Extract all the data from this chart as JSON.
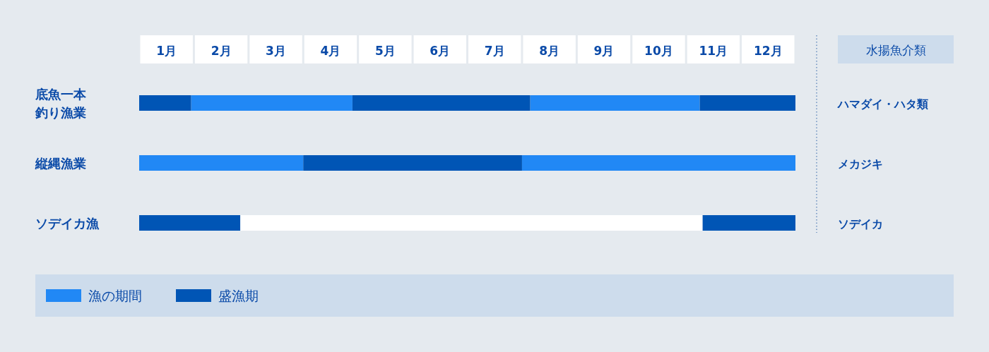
{
  "chart_data": {
    "type": "bar",
    "orientation": "horizontal",
    "legend": "bottom",
    "categories": [
      "底魚一本釣り漁業",
      "縦縄漁業",
      "ソデイカ漁"
    ],
    "xlim": [
      0,
      12
    ],
    "xticks": [
      {
        "value": 0.5,
        "label": "1月"
      },
      {
        "value": 1.5,
        "label": "2月"
      },
      {
        "value": 2.5,
        "label": "3月"
      },
      {
        "value": 3.5,
        "label": "4月"
      },
      {
        "value": 4.5,
        "label": "5月"
      },
      {
        "value": 5.5,
        "label": "6月"
      },
      {
        "value": 6.5,
        "label": "7月"
      },
      {
        "value": 7.5,
        "label": "8月"
      },
      {
        "value": 8.5,
        "label": "9月"
      },
      {
        "value": 9.5,
        "label": "10月"
      },
      {
        "value": 10.5,
        "label": "11月"
      },
      {
        "value": 11.5,
        "label": "12月"
      }
    ],
    "series": [
      {
        "name": "漁の期間",
        "color": "#2188f5",
        "base": [
          0.95,
          0,
          null
        ],
        "values": [
          2.95,
          3,
          null
        ]
      },
      {
        "color": "#2188f5",
        "base": [
          7.15,
          7,
          null
        ],
        "values": [
          3.1,
          5,
          null
        ]
      },
      {
        "name": "盛漁期",
        "color": "#0055b5",
        "base": [
          0,
          3,
          0
        ],
        "values": [
          0.95,
          4,
          1.85
        ]
      },
      {
        "color": "#0055b5",
        "base": [
          3.9,
          null,
          10.3
        ],
        "values": [
          3.25,
          null,
          1.7
        ]
      },
      {
        "color": "#0055b5",
        "base": [
          10.25,
          null,
          null
        ],
        "values": [
          1.75,
          null,
          null
        ]
      },
      {
        "color": "#ffffff",
        "base": [
          null,
          null,
          1.85
        ],
        "values": [
          null,
          null,
          8.45
        ]
      }
    ],
    "annotations": [
      "水揚魚介類",
      "ハマダイ・ハタ類",
      "メカジキ",
      "ソデイカ"
    ]
  }
}
